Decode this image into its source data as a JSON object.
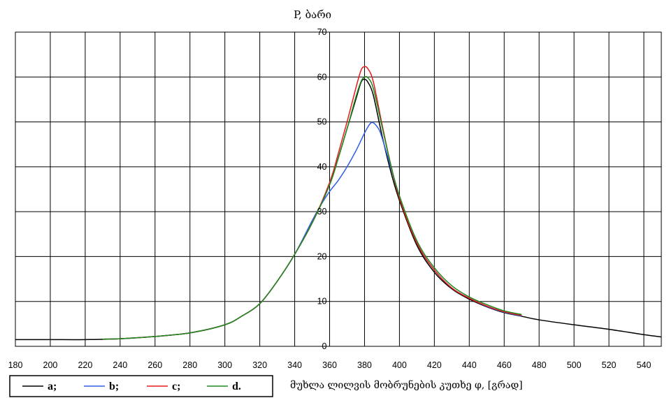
{
  "chart_data": {
    "type": "line",
    "ylabel": "P, ბარი",
    "xlabel": "მუხლა ლილვის მობრუნების კუთხე φ, [გრად]",
    "xlim": [
      180,
      550
    ],
    "ylim": [
      0,
      70
    ],
    "xticks": [
      180,
      200,
      220,
      240,
      260,
      280,
      300,
      320,
      340,
      360,
      380,
      400,
      420,
      440,
      460,
      480,
      500,
      520,
      540
    ],
    "yticks": [
      0,
      10,
      20,
      30,
      40,
      50,
      60,
      70
    ],
    "grid": true,
    "legend_position": "bottom-left",
    "legend": [
      {
        "key": "a",
        "label": "a;"
      },
      {
        "key": "b",
        "label": "b;"
      },
      {
        "key": "c",
        "label": "c;"
      },
      {
        "key": "d",
        "label": "d."
      }
    ],
    "series": [
      {
        "key": "a",
        "name": "a",
        "color": "#000000",
        "x": [
          180,
          200,
          220,
          240,
          260,
          280,
          300,
          310,
          320,
          330,
          340,
          350,
          360,
          365,
          370,
          375,
          378,
          380,
          382,
          385,
          390,
          395,
          400,
          410,
          420,
          430,
          440,
          450,
          460,
          470,
          480,
          500,
          520,
          540,
          550
        ],
        "y": [
          1.5,
          1.5,
          1.5,
          1.7,
          2.2,
          3.0,
          4.8,
          6.8,
          9.5,
          14.5,
          20.5,
          27.5,
          36.0,
          42.0,
          48.5,
          55.0,
          58.8,
          59.5,
          58.8,
          56.0,
          47.0,
          39.0,
          32.5,
          22.5,
          16.5,
          12.8,
          10.5,
          8.8,
          7.5,
          6.7,
          5.9,
          4.8,
          3.8,
          2.6,
          2.1
        ]
      },
      {
        "key": "b",
        "name": "b",
        "color": "#2f5ee6",
        "x": [
          230,
          240,
          260,
          280,
          300,
          310,
          320,
          330,
          340,
          350,
          355,
          360,
          365,
          370,
          375,
          380,
          383,
          385,
          388,
          390,
          395,
          400,
          410,
          420,
          430,
          440,
          450,
          460,
          470
        ],
        "y": [
          1.6,
          1.7,
          2.2,
          3.0,
          4.8,
          6.8,
          9.5,
          14.5,
          20.5,
          28.0,
          31.5,
          34.5,
          37.0,
          40.0,
          43.5,
          47.5,
          49.5,
          49.8,
          48.5,
          46.5,
          40.0,
          33.5,
          23.0,
          17.0,
          13.0,
          10.7,
          8.9,
          7.6,
          6.8
        ]
      },
      {
        "key": "c",
        "name": "c",
        "color": "#e61a1a",
        "x": [
          230,
          240,
          260,
          280,
          300,
          310,
          320,
          330,
          340,
          350,
          360,
          365,
          370,
          375,
          378,
          380,
          382,
          385,
          390,
          395,
          400,
          410,
          420,
          430,
          440,
          450,
          460,
          470
        ],
        "y": [
          1.6,
          1.7,
          2.2,
          3.0,
          4.8,
          6.8,
          9.5,
          14.5,
          20.5,
          27.5,
          36.5,
          43.0,
          50.0,
          57.5,
          61.5,
          62.3,
          61.8,
          59.0,
          49.5,
          40.5,
          33.0,
          23.0,
          17.0,
          13.0,
          10.7,
          9.0,
          7.7,
          6.9
        ]
      },
      {
        "key": "d",
        "name": "d",
        "color": "#1f8a1f",
        "x": [
          230,
          240,
          260,
          280,
          300,
          310,
          320,
          330,
          340,
          350,
          360,
          365,
          370,
          375,
          378,
          380,
          382,
          385,
          390,
          395,
          400,
          410,
          420,
          430,
          440,
          450,
          460,
          470
        ],
        "y": [
          1.6,
          1.7,
          2.2,
          3.0,
          4.8,
          6.8,
          9.5,
          14.5,
          20.5,
          27.5,
          36.0,
          42.0,
          48.5,
          55.5,
          59.0,
          60.0,
          59.8,
          57.5,
          49.0,
          40.5,
          33.5,
          23.5,
          17.5,
          13.5,
          11.0,
          9.3,
          7.9,
          7.1
        ]
      }
    ]
  }
}
